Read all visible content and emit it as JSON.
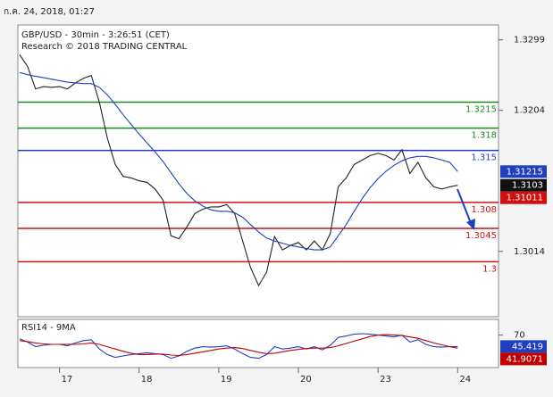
{
  "chart_data": {
    "type": "line",
    "timestamp": "ก.ค. 24, 2018, 01:27",
    "title": "GBP/USD - 30min - 3:26:51 (CET)",
    "subtitle": "Research © 2018 TRADING CENTRAL",
    "xlim": [
      0,
      59
    ],
    "xticks": [
      {
        "value": 5,
        "label": "17"
      },
      {
        "value": 15,
        "label": "18"
      },
      {
        "value": 25,
        "label": "19"
      },
      {
        "value": 35,
        "label": "20"
      },
      {
        "value": 45,
        "label": "23"
      },
      {
        "value": 55,
        "label": "24"
      }
    ],
    "ylim": [
      1.2926,
      1.3319
    ],
    "yticks": [
      1.3299,
      1.3204,
      1.3014
    ],
    "series": [
      {
        "color": "#222222",
        "values": [
          1.3279,
          1.3263,
          1.3233,
          1.3236,
          1.3235,
          1.3236,
          1.3233,
          1.3241,
          1.3247,
          1.3251,
          1.3215,
          1.3167,
          1.3131,
          1.3115,
          1.3113,
          1.3109,
          1.3107,
          1.3098,
          1.3083,
          1.3035,
          1.3031,
          1.3047,
          1.3065,
          1.3071,
          1.3074,
          1.3074,
          1.3077,
          1.3065,
          1.3028,
          1.2992,
          1.2968,
          1.2986,
          1.3034,
          1.3016,
          1.3022,
          1.3026,
          1.3016,
          1.3028,
          1.3016,
          1.3038,
          1.3101,
          1.3113,
          1.3131,
          1.3137,
          1.3143,
          1.3146,
          1.3143,
          1.3137,
          1.3151,
          1.3119,
          1.3134,
          1.3113,
          1.3101,
          1.3098,
          1.3101,
          1.3103
        ]
      },
      {
        "color": "#1f3fbf",
        "values": [
          1.3255,
          1.3252,
          1.325,
          1.3248,
          1.3246,
          1.3244,
          1.3242,
          1.3241,
          1.324,
          1.324,
          1.3235,
          1.3225,
          1.3212,
          1.3198,
          1.3185,
          1.3172,
          1.316,
          1.3148,
          1.3135,
          1.312,
          1.3105,
          1.3092,
          1.3082,
          1.3075,
          1.307,
          1.3068,
          1.3068,
          1.3066,
          1.306,
          1.305,
          1.304,
          1.3032,
          1.3028,
          1.3025,
          1.3022,
          1.302,
          1.3018,
          1.3016,
          1.3016,
          1.302,
          1.3035,
          1.305,
          1.3068,
          1.3085,
          1.31,
          1.3112,
          1.3122,
          1.313,
          1.3136,
          1.314,
          1.3142,
          1.3142,
          1.314,
          1.3137,
          1.3134,
          1.31215
        ]
      }
    ],
    "levels": [
      {
        "value": 1.3215,
        "color": "#1a8a1a"
      },
      {
        "value": 1.318,
        "color": "#1a8a1a"
      },
      {
        "value": 1.315,
        "color": "#1f3fbf"
      },
      {
        "value": 1.308,
        "color": "#d01010"
      },
      {
        "value": 1.3045,
        "color": "#d01010"
      },
      {
        "value": 1.3,
        "color": "#d01010"
      }
    ],
    "price_tags": [
      {
        "value": 1.31215,
        "color": "#1f3fbf"
      },
      {
        "value": 1.3103,
        "color": "#111111"
      },
      {
        "value": 1.31011,
        "color": "#d01010"
      }
    ],
    "rsi": {
      "title": "RSI14 - 9MA",
      "ylim": [
        0,
        100
      ],
      "yticks": [
        70
      ],
      "series": [
        {
          "color": "#1f3fbf",
          "values": [
            62,
            55,
            45,
            48,
            50,
            50,
            47,
            53,
            58,
            60,
            40,
            28,
            22,
            25,
            28,
            30,
            32,
            30,
            28,
            20,
            25,
            35,
            42,
            45,
            44,
            45,
            47,
            40,
            30,
            22,
            20,
            28,
            45,
            40,
            42,
            45,
            40,
            45,
            38,
            48,
            65,
            68,
            72,
            73,
            72,
            70,
            68,
            66,
            70,
            55,
            60,
            50,
            45,
            44,
            45,
            45.419
          ]
        },
        {
          "color": "#c00000",
          "values": [
            58,
            56,
            53,
            51,
            50,
            50,
            50,
            50,
            51,
            53,
            50,
            45,
            40,
            35,
            31,
            28,
            28,
            29,
            29,
            27,
            26,
            28,
            31,
            34,
            37,
            40,
            42,
            43,
            41,
            37,
            33,
            30,
            31,
            34,
            37,
            39,
            41,
            42,
            42,
            43,
            47,
            52,
            57,
            62,
            67,
            70,
            71,
            70,
            69,
            66,
            63,
            58,
            53,
            49,
            45,
            41.9071
          ]
        }
      ]
    }
  }
}
